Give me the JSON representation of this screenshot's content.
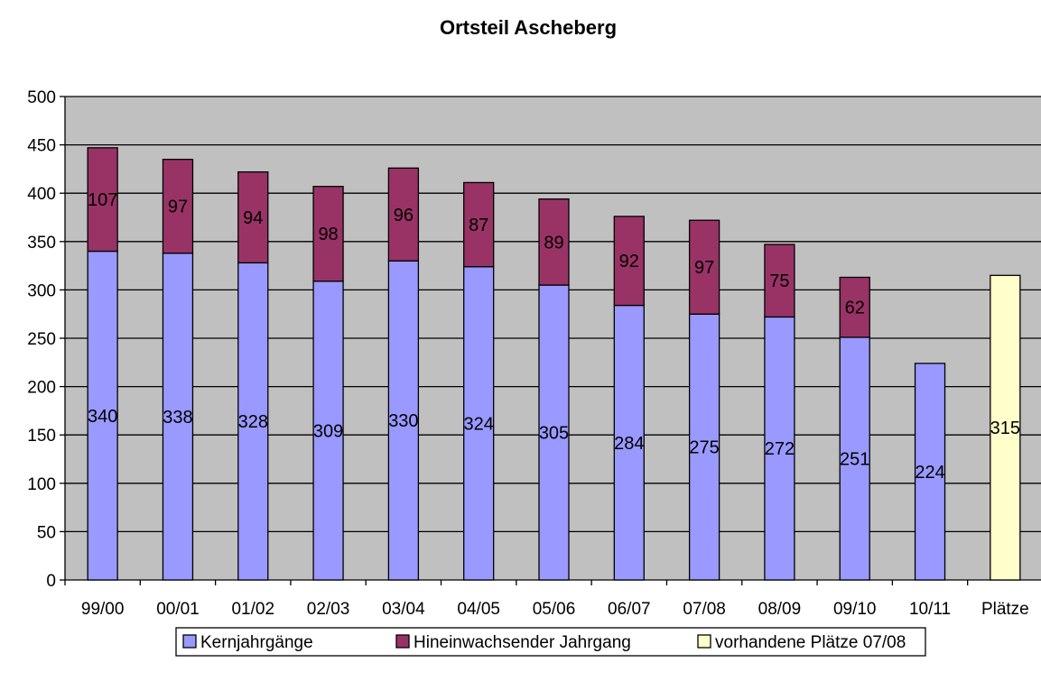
{
  "chart_data": {
    "type": "bar",
    "stacked": true,
    "title": "Ortsteil Ascheberg",
    "xlabel": "",
    "ylabel": "",
    "ylim": [
      0,
      500
    ],
    "yticks": [
      "0",
      "50",
      "100",
      "150",
      "200",
      "250",
      "300",
      "350",
      "400",
      "450",
      "500"
    ],
    "categories": [
      "99/00",
      "00/01",
      "01/02",
      "02/03",
      "03/04",
      "04/05",
      "05/06",
      "06/07",
      "07/08",
      "08/09",
      "09/10",
      "10/11",
      "Plätze"
    ],
    "series": [
      {
        "name": "Kernjahrgänge",
        "color": "#9999FF",
        "values": [
          340,
          338,
          328,
          309,
          330,
          324,
          305,
          284,
          275,
          272,
          251,
          224,
          null
        ],
        "labels": [
          "340",
          "338",
          "328",
          "309",
          "330",
          "324",
          "305",
          "284",
          "275",
          "272",
          "251",
          "224",
          ""
        ]
      },
      {
        "name": "Hineinwachsender Jahrgang",
        "color": "#993366",
        "values": [
          107,
          97,
          94,
          98,
          96,
          87,
          89,
          92,
          97,
          75,
          62,
          null,
          null
        ],
        "labels": [
          "107",
          "97",
          "94",
          "98",
          "96",
          "87",
          "89",
          "92",
          "97",
          "75",
          "62",
          "",
          ""
        ]
      },
      {
        "name": "vorhandene Plätze 07/08",
        "color": "#FFFFCC",
        "values": [
          null,
          null,
          null,
          null,
          null,
          null,
          null,
          null,
          null,
          null,
          null,
          null,
          315
        ],
        "labels": [
          "",
          "",
          "",
          "",
          "",
          "",
          "",
          "",
          "",
          "",
          "",
          "",
          "315"
        ]
      }
    ],
    "grid": true,
    "plot_background": "#C0C0C0",
    "legend_position": "bottom"
  }
}
